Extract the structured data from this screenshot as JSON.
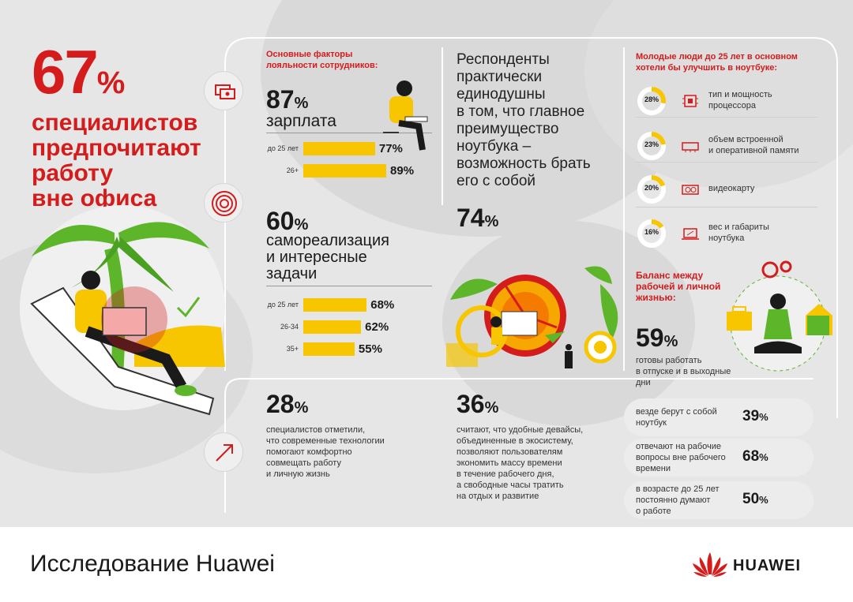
{
  "headline": {
    "pct_number": "67",
    "pct_sign": "%",
    "line1": "специалистов",
    "line2": "предпочитают",
    "line3": "работу",
    "line4": "вне офиса"
  },
  "loyalty": {
    "title_line1": "Основные факторы",
    "title_line2": "лояльности сотрудников:",
    "salary": {
      "value": "87",
      "sign": "%",
      "label": "зарплата"
    },
    "self": {
      "value": "60",
      "sign": "%",
      "label_line1": "самореализация",
      "label_line2": "и интересные",
      "label_line3": "задачи"
    }
  },
  "chart_data": [
    {
      "type": "bar",
      "title": "зарплата",
      "categories": [
        "до 25 лет",
        "26+"
      ],
      "values": [
        77,
        89
      ],
      "value_labels": [
        "77%",
        "89%"
      ]
    },
    {
      "type": "bar",
      "title": "самореализация и интересные задачи",
      "categories": [
        "до 25 лет",
        "26-34",
        "35+"
      ],
      "values": [
        68,
        62,
        55
      ],
      "value_labels": [
        "68%",
        "62%",
        "55%"
      ]
    },
    {
      "type": "pie",
      "title": "Молодые люди до 25 лет в основном хотели бы улучшить в ноутбуке:",
      "items": [
        {
          "value": 28,
          "label": "28%",
          "text_line1": "тип и мощность",
          "text_line2": "процессора",
          "icon": "cpu-icon"
        },
        {
          "value": 23,
          "label": "23%",
          "text_line1": "объем встроенной",
          "text_line2": "и оперативной памяти",
          "icon": "memory-icon"
        },
        {
          "value": 20,
          "label": "20%",
          "text_line1": "видеокарту",
          "text_line2": "",
          "icon": "gpu-icon"
        },
        {
          "value": 16,
          "label": "16%",
          "text_line1": "вес и габариты",
          "text_line2": "ноутбука",
          "icon": "laptop-icon"
        }
      ],
      "colors": {
        "fill": "#f7c600",
        "rest": "#ffffff"
      }
    }
  ],
  "respondents": {
    "line1": "Респонденты",
    "line2": "практически",
    "line3": "единодушны",
    "line4": "в том, что главное",
    "line5": "преимущество",
    "line6": "ноутбука –",
    "line7": "возможность брать",
    "line8": "его с собой",
    "value": "74",
    "sign": "%"
  },
  "young": {
    "title_line1": "Молодые люди до 25 лет в основном",
    "title_line2": "хотели бы улучшить в ноутбуке:"
  },
  "balance": {
    "title_line1": "Баланс между",
    "title_line2": "рабочей и личной",
    "title_line3": "жизнью:",
    "value": "59",
    "sign": "%",
    "text_line1": "готовы работать",
    "text_line2": "в отпуске и в выходные",
    "text_line3": "дни"
  },
  "pills": [
    {
      "line1": "везде берут с собой",
      "line2": "ноутбук",
      "line3": "",
      "value": "39",
      "sign": "%"
    },
    {
      "line1": "отвечают на рабочие",
      "line2": "вопросы вне рабочего",
      "line3": "времени",
      "value": "68",
      "sign": "%"
    },
    {
      "line1": "в возрасте до 25 лет",
      "line2": "постоянно думают",
      "line3": "о работе",
      "value": "50",
      "sign": "%"
    }
  ],
  "tech": {
    "value": "28",
    "sign": "%",
    "line1": "специалистов отметили,",
    "line2": "что современные технологии",
    "line3": "помогают комфортно",
    "line4": "совмещать работу",
    "line5": "и личную жизнь"
  },
  "eco": {
    "value": "36",
    "sign": "%",
    "line1": "считают, что удобные девайсы,",
    "line2": "объединенные в экосистему,",
    "line3": "позволяют пользователям",
    "line4": "экономить массу времени",
    "line5": "в течение рабочего дня,",
    "line6": "а свободные часы тратить",
    "line7": "на отдых и развитие"
  },
  "footer": {
    "title": "Исследование Huawei",
    "brand": "HUAWEI"
  },
  "colors": {
    "red": "#d41c1c",
    "yellow": "#f7c600",
    "green": "#5db52a",
    "background": "#e6e6e6"
  }
}
